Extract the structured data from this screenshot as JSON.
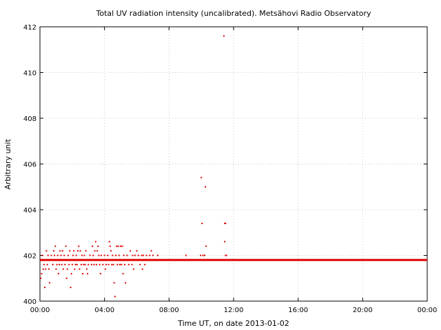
{
  "chart_data": {
    "type": "scatter",
    "title": "Total UV radiation intensity (uncalibrated). Metsähovi Radio Observatory",
    "xlabel": "Time UT, on date 2013-01-02",
    "ylabel": "Arbitrary unit",
    "xlim": [
      0,
      24
    ],
    "ylim": [
      400,
      412
    ],
    "x_ticks": [
      0,
      4,
      8,
      12,
      16,
      20,
      24
    ],
    "x_tick_labels": [
      "00:00",
      "04:00",
      "08:00",
      "12:00",
      "16:00",
      "20:00",
      "00:00"
    ],
    "y_ticks": [
      400,
      402,
      404,
      406,
      408,
      410,
      412
    ],
    "y_tick_labels": [
      "400",
      "402",
      "404",
      "406",
      "408",
      "410",
      "412"
    ],
    "grid": true,
    "series": [
      {
        "color": "#e00000",
        "baseline": {
          "value": 401.8,
          "x_start": 0.0,
          "x_end": 24.0
        },
        "points": [
          [
            0.05,
            401.0
          ],
          [
            0.1,
            401.2
          ],
          [
            0.15,
            402.0
          ],
          [
            0.2,
            401.4
          ],
          [
            0.25,
            401.6
          ],
          [
            0.3,
            400.6
          ],
          [
            0.35,
            401.4
          ],
          [
            0.4,
            402.2
          ],
          [
            0.45,
            401.6
          ],
          [
            0.5,
            402.0
          ],
          [
            0.55,
            401.4
          ],
          [
            0.6,
            400.8
          ],
          [
            0.7,
            402.0
          ],
          [
            0.8,
            401.6
          ],
          [
            0.85,
            402.2
          ],
          [
            0.9,
            402.0
          ],
          [
            0.95,
            402.4
          ],
          [
            1.0,
            401.4
          ],
          [
            1.05,
            401.6
          ],
          [
            1.1,
            402.0
          ],
          [
            1.15,
            401.2
          ],
          [
            1.2,
            401.6
          ],
          [
            1.25,
            402.2
          ],
          [
            1.3,
            402.0
          ],
          [
            1.35,
            401.6
          ],
          [
            1.4,
            402.2
          ],
          [
            1.45,
            401.4
          ],
          [
            1.5,
            402.0
          ],
          [
            1.55,
            401.6
          ],
          [
            1.6,
            402.4
          ],
          [
            1.65,
            401.0
          ],
          [
            1.7,
            401.4
          ],
          [
            1.75,
            402.0
          ],
          [
            1.8,
            401.6
          ],
          [
            1.85,
            402.2
          ],
          [
            1.9,
            400.6
          ],
          [
            1.95,
            401.2
          ],
          [
            2.0,
            401.6
          ],
          [
            2.05,
            402.0
          ],
          [
            2.1,
            402.2
          ],
          [
            2.15,
            401.4
          ],
          [
            2.2,
            401.6
          ],
          [
            2.25,
            402.0
          ],
          [
            2.3,
            401.6
          ],
          [
            2.35,
            402.2
          ],
          [
            2.4,
            402.4
          ],
          [
            2.45,
            401.4
          ],
          [
            2.5,
            402.2
          ],
          [
            2.55,
            401.6
          ],
          [
            2.6,
            402.0
          ],
          [
            2.65,
            401.2
          ],
          [
            2.7,
            401.6
          ],
          [
            2.75,
            402.0
          ],
          [
            2.8,
            401.6
          ],
          [
            2.85,
            402.2
          ],
          [
            2.9,
            401.4
          ],
          [
            2.95,
            401.2
          ],
          [
            3.0,
            401.6
          ],
          [
            3.1,
            402.0
          ],
          [
            3.2,
            401.6
          ],
          [
            3.25,
            402.4
          ],
          [
            3.3,
            402.0
          ],
          [
            3.35,
            401.6
          ],
          [
            3.4,
            402.2
          ],
          [
            3.45,
            402.6
          ],
          [
            3.5,
            401.6
          ],
          [
            3.55,
            402.2
          ],
          [
            3.6,
            402.4
          ],
          [
            3.65,
            402.0
          ],
          [
            3.7,
            401.6
          ],
          [
            3.75,
            401.2
          ],
          [
            3.8,
            402.0
          ],
          [
            3.9,
            401.6
          ],
          [
            4.0,
            402.0
          ],
          [
            4.05,
            401.4
          ],
          [
            4.1,
            401.6
          ],
          [
            4.2,
            402.0
          ],
          [
            4.25,
            401.6
          ],
          [
            4.3,
            402.6
          ],
          [
            4.35,
            402.4
          ],
          [
            4.4,
            402.2
          ],
          [
            4.45,
            401.6
          ],
          [
            4.5,
            402.0
          ],
          [
            4.55,
            401.6
          ],
          [
            4.6,
            400.8
          ],
          [
            4.65,
            400.2
          ],
          [
            4.7,
            402.0
          ],
          [
            4.75,
            402.4
          ],
          [
            4.8,
            401.6
          ],
          [
            4.85,
            402.4
          ],
          [
            4.9,
            402.0
          ],
          [
            4.95,
            401.6
          ],
          [
            5.0,
            402.4
          ],
          [
            5.05,
            401.6
          ],
          [
            5.1,
            402.4
          ],
          [
            5.15,
            401.2
          ],
          [
            5.2,
            402.0
          ],
          [
            5.25,
            401.6
          ],
          [
            5.3,
            400.8
          ],
          [
            5.4,
            402.0
          ],
          [
            5.5,
            401.6
          ],
          [
            5.6,
            402.2
          ],
          [
            5.7,
            401.6
          ],
          [
            5.75,
            402.0
          ],
          [
            5.8,
            401.4
          ],
          [
            5.9,
            402.0
          ],
          [
            6.0,
            402.2
          ],
          [
            6.1,
            402.0
          ],
          [
            6.2,
            401.6
          ],
          [
            6.3,
            402.0
          ],
          [
            6.35,
            401.4
          ],
          [
            6.4,
            402.0
          ],
          [
            6.5,
            401.6
          ],
          [
            6.6,
            402.0
          ],
          [
            6.8,
            402.0
          ],
          [
            6.9,
            402.2
          ],
          [
            7.0,
            402.0
          ],
          [
            7.3,
            402.0
          ],
          [
            9.05,
            402.0
          ],
          [
            9.95,
            402.0
          ],
          [
            10.0,
            405.4
          ],
          [
            10.05,
            403.4
          ],
          [
            10.1,
            402.0
          ],
          [
            10.2,
            402.0
          ],
          [
            10.25,
            405.0
          ],
          [
            10.3,
            402.4
          ],
          [
            11.4,
            411.6
          ],
          [
            11.45,
            403.4
          ],
          [
            11.5,
            403.4
          ],
          [
            11.45,
            402.6
          ],
          [
            11.5,
            402.0
          ],
          [
            11.55,
            402.0
          ]
        ]
      }
    ]
  }
}
